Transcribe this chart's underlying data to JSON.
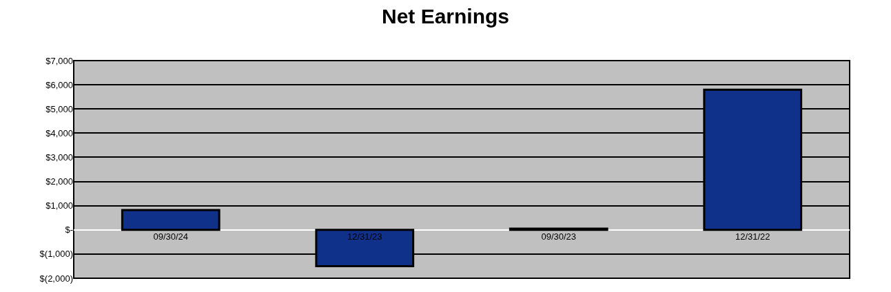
{
  "chart_data": {
    "type": "bar",
    "title": "Net Earnings",
    "categories": [
      "09/30/24",
      "12/31/23",
      "09/30/23",
      "12/31/22"
    ],
    "values": [
      820,
      -1500,
      50,
      5800
    ],
    "color": "#10318a",
    "ylim": [
      -2000,
      7000
    ],
    "yticks": [
      {
        "value": -2000,
        "label": "$(2,000)"
      },
      {
        "value": -1000,
        "label": "$(1,000)"
      },
      {
        "value": 0,
        "label": "$-"
      },
      {
        "value": 1000,
        "label": "$1,000"
      },
      {
        "value": 2000,
        "label": "$2,000"
      },
      {
        "value": 3000,
        "label": "$3,000"
      },
      {
        "value": 4000,
        "label": "$4,000"
      },
      {
        "value": 5000,
        "label": "$5,000"
      },
      {
        "value": 6000,
        "label": "$6,000"
      },
      {
        "value": 7000,
        "label": "$7,000"
      }
    ],
    "grid": "y"
  }
}
